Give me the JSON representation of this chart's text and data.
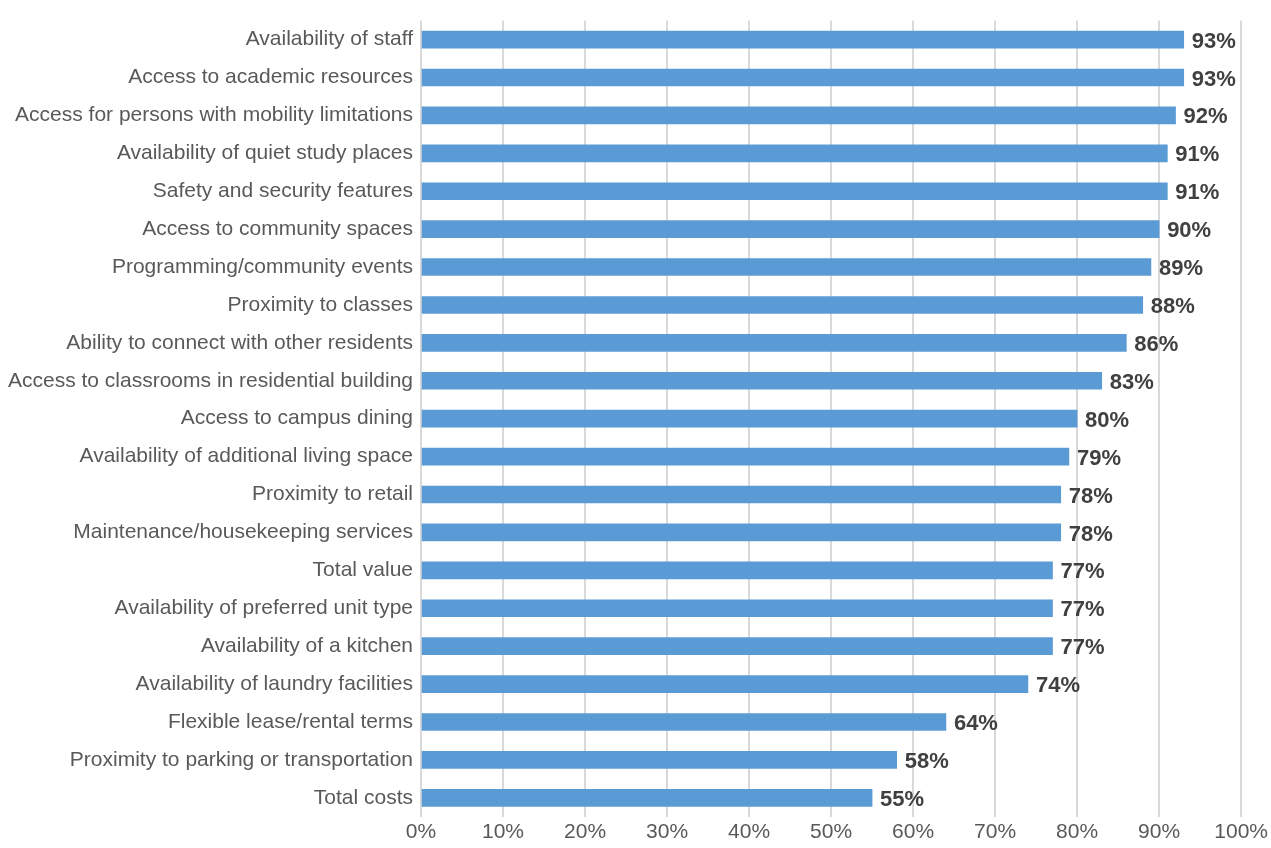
{
  "chart_data": {
    "type": "bar",
    "orientation": "horizontal",
    "categories": [
      "Availability of staff",
      "Access to academic resources",
      "Access for persons with mobility limitations",
      "Availability of quiet study places",
      "Safety and security features",
      "Access to community spaces",
      "Programming/community events",
      "Proximity to classes",
      "Ability to connect with other residents",
      "Access to classrooms in residential building",
      "Access to campus dining",
      "Availability of additional living space",
      "Proximity to retail",
      "Maintenance/housekeeping services",
      "Total value",
      "Availability of preferred unit type",
      "Availability of a kitchen",
      "Availability of laundry facilities",
      "Flexible lease/rental terms",
      "Proximity to parking or transportation",
      "Total costs"
    ],
    "values": [
      93,
      93,
      92,
      91,
      91,
      90,
      89,
      88,
      86,
      83,
      80,
      79,
      78,
      78,
      77,
      77,
      77,
      74,
      64,
      58,
      55
    ],
    "value_labels": [
      "93%",
      "93%",
      "92%",
      "91%",
      "91%",
      "90%",
      "89%",
      "88%",
      "86%",
      "83%",
      "80%",
      "79%",
      "78%",
      "78%",
      "77%",
      "77%",
      "77%",
      "74%",
      "64%",
      "58%",
      "55%"
    ],
    "color": "#5b9bd5",
    "xlim": [
      0,
      100
    ],
    "xticks": [
      {
        "value": 0,
        "label": "0%"
      },
      {
        "value": 10,
        "label": "10%"
      },
      {
        "value": 20,
        "label": "20%"
      },
      {
        "value": 30,
        "label": "30%"
      },
      {
        "value": 40,
        "label": "40%"
      },
      {
        "value": 50,
        "label": "50%"
      },
      {
        "value": 60,
        "label": "60%"
      },
      {
        "value": 70,
        "label": "70%"
      },
      {
        "value": 80,
        "label": "80%"
      },
      {
        "value": 90,
        "label": "90%"
      },
      {
        "value": 100,
        "label": "100%"
      }
    ],
    "grid": "x",
    "legend": false
  }
}
